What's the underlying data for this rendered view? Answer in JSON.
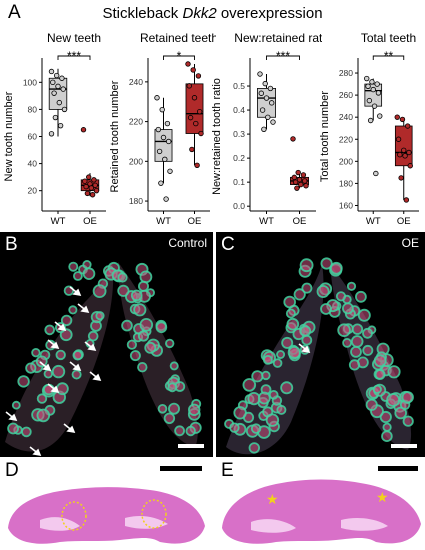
{
  "panels": {
    "A": "A",
    "B": "B",
    "C": "C",
    "D": "D",
    "E": "E"
  },
  "figure_title_prefix": "Stickleback ",
  "figure_title_gene": "Dkk2",
  "figure_title_suffix": " overexpression",
  "microscopy": {
    "B_label": "Control",
    "C_label": "OE"
  },
  "colors": {
    "wt_fill": "#cfcfcf",
    "oe_fill": "#b02a2a",
    "micro_green": "#3fd3a0",
    "micro_magenta": "#c8507e",
    "hist_pink": "#d667c0",
    "annot_yellow": "#f2d21a"
  },
  "chart_data": [
    {
      "type": "box",
      "title": "New teeth",
      "ylabel": "New tooth number",
      "categories": [
        "WT",
        "OE"
      ],
      "ylim": [
        5,
        115
      ],
      "yticks": [
        "20",
        "40",
        "60",
        "80",
        "100"
      ],
      "significance": "***",
      "boxes": [
        {
          "name": "WT",
          "q1": 80,
          "median": 95,
          "q3": 103,
          "whisker_low": 60,
          "whisker_high": 110
        },
        {
          "name": "OE",
          "q1": 20,
          "median": 24,
          "q3": 28,
          "whisker_low": 16,
          "whisker_high": 33
        }
      ],
      "points": {
        "WT": [
          108,
          105,
          103,
          100,
          97,
          95,
          92,
          85,
          80,
          74,
          68,
          62
        ],
        "OE": [
          65,
          30,
          28,
          27,
          25,
          24,
          23,
          22,
          20,
          18,
          17
        ]
      }
    },
    {
      "type": "box",
      "title": "Retained teeth",
      "ylabel": "Retained tooth number",
      "categories": [
        "WT",
        "OE"
      ],
      "ylim": [
        175,
        250
      ],
      "yticks": [
        "180",
        "200",
        "220",
        "240"
      ],
      "significance": "*",
      "boxes": [
        {
          "name": "WT",
          "q1": 200,
          "median": 210,
          "q3": 216,
          "whisker_low": 189,
          "whisker_high": 232
        },
        {
          "name": "OE",
          "q1": 214,
          "median": 224,
          "q3": 239,
          "whisker_low": 198,
          "whisker_high": 249
        }
      ],
      "points": {
        "WT": [
          232,
          226,
          219,
          216,
          212,
          210,
          205,
          201,
          195,
          189,
          181
        ],
        "OE": [
          249,
          246,
          243,
          238,
          232,
          225,
          222,
          219,
          214,
          206,
          198
        ]
      }
    },
    {
      "type": "box",
      "title": "New:retained ratio",
      "ylabel": "New:retained tooth ratio",
      "categories": [
        "WT",
        "OE"
      ],
      "ylim": [
        -0.02,
        0.6
      ],
      "yticks": [
        "0.0",
        "0.1",
        "0.2",
        "0.3",
        "0.4",
        "0.5"
      ],
      "significance": "***",
      "boxes": [
        {
          "name": "WT",
          "q1": 0.37,
          "median": 0.45,
          "q3": 0.49,
          "whisker_low": 0.32,
          "whisker_high": 0.55
        },
        {
          "name": "OE",
          "q1": 0.09,
          "median": 0.105,
          "q3": 0.12,
          "whisker_low": 0.075,
          "whisker_high": 0.14
        }
      ],
      "points": {
        "WT": [
          0.55,
          0.51,
          0.49,
          0.47,
          0.45,
          0.43,
          0.4,
          0.37,
          0.35,
          0.32
        ],
        "OE": [
          0.28,
          0.14,
          0.13,
          0.12,
          0.11,
          0.105,
          0.1,
          0.09,
          0.085,
          0.075
        ]
      }
    },
    {
      "type": "box",
      "title": "Total teeth",
      "ylabel": "Total tooth number",
      "categories": [
        "WT",
        "OE"
      ],
      "ylim": [
        155,
        290
      ],
      "yticks": [
        "160",
        "180",
        "200",
        "220",
        "240",
        "260",
        "280"
      ],
      "significance": "**",
      "boxes": [
        {
          "name": "WT",
          "q1": 250,
          "median": 264,
          "q3": 270,
          "whisker_low": 237,
          "whisker_high": 275
        },
        {
          "name": "OE",
          "q1": 196,
          "median": 208,
          "q3": 232,
          "whisker_low": 165,
          "whisker_high": 240
        }
      ],
      "points": {
        "WT": [
          275,
          272,
          270,
          268,
          265,
          262,
          255,
          250,
          241,
          237,
          189
        ],
        "OE": [
          240,
          238,
          232,
          220,
          210,
          208,
          206,
          205,
          196,
          185,
          165
        ]
      }
    }
  ]
}
